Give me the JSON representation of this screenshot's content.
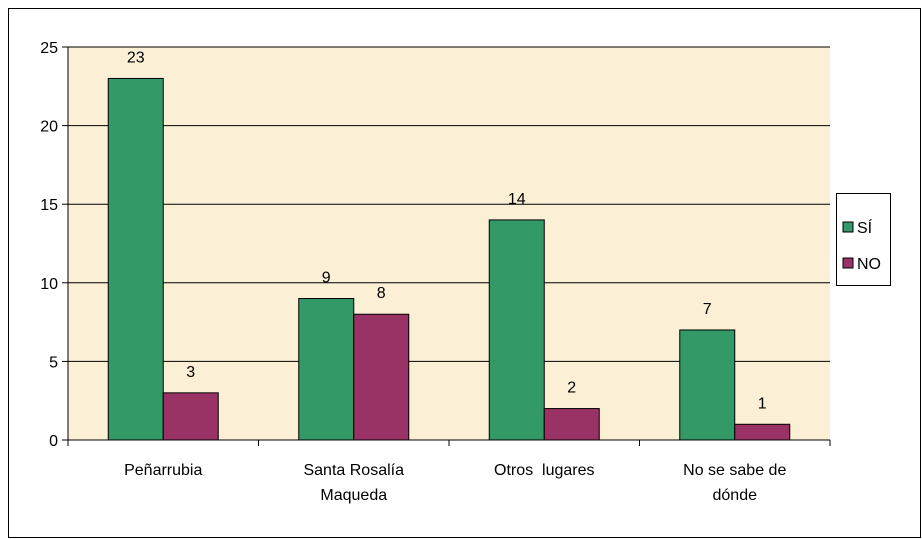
{
  "chart_data": {
    "type": "bar",
    "categories": [
      "Peñarrubia",
      "Santa Rosalía Maqueda",
      "Otros  lugares",
      "No se sabe de dónde"
    ],
    "series": [
      {
        "name": "SÍ",
        "color": "#339966",
        "values": [
          23,
          9,
          14,
          7
        ]
      },
      {
        "name": "NO",
        "color": "#993366",
        "values": [
          3,
          8,
          2,
          1
        ]
      }
    ],
    "ylim": [
      0,
      25
    ],
    "yticks": [
      0,
      5,
      10,
      15,
      20,
      25
    ],
    "grid": true,
    "legend": "right"
  }
}
